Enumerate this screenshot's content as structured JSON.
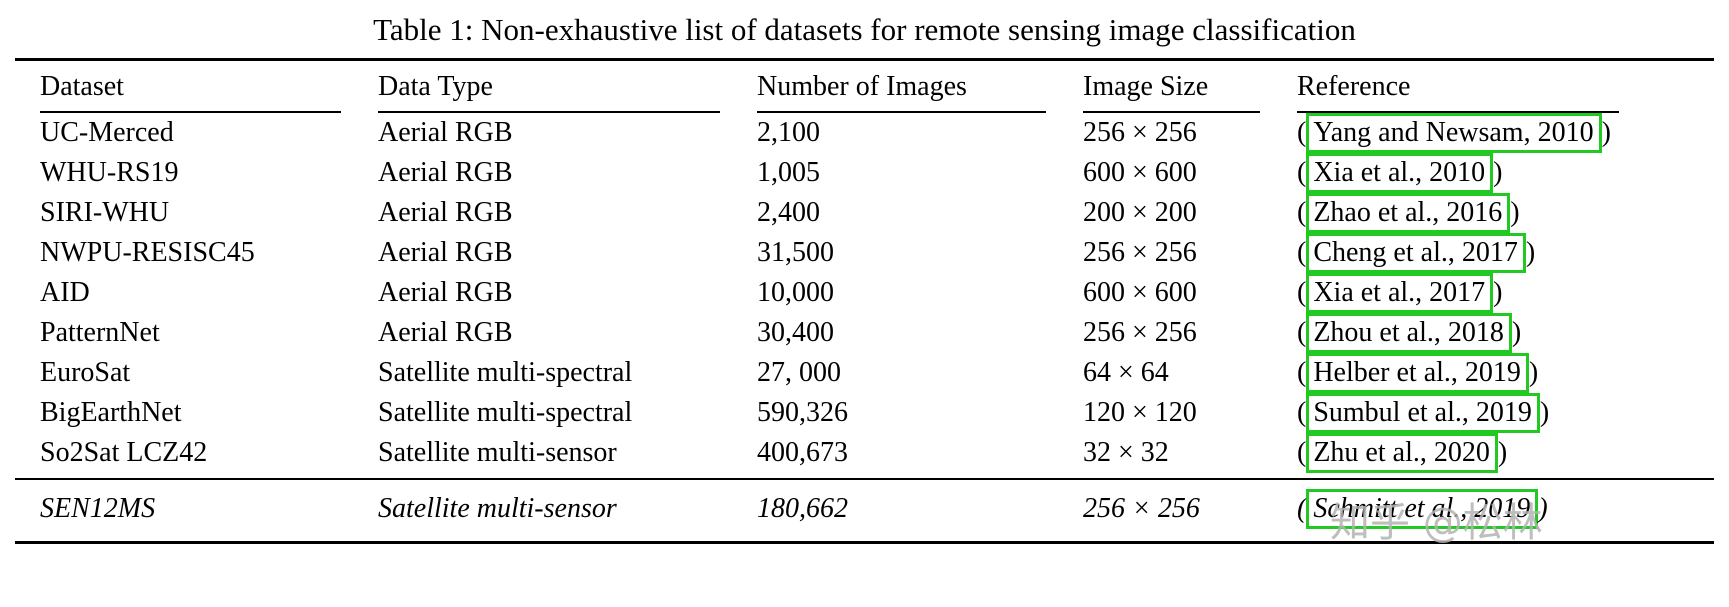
{
  "title": "Table 1: Non-exhaustive list of datasets for remote sensing image classification",
  "columns": {
    "dataset": "Dataset",
    "data_type": "Data Type",
    "num_images": "Number of Images",
    "image_size": "Image Size",
    "reference": "Reference"
  },
  "paren_open": "(",
  "paren_close": ")",
  "link_box_color": "#23C923",
  "watermark": "知乎 @松林",
  "rows": [
    {
      "dataset": "UC-Merced",
      "data_type": "Aerial RGB",
      "num_images": "2,100",
      "image_size": "256 × 256",
      "citation": "Yang and Newsam, 2010"
    },
    {
      "dataset": "WHU-RS19",
      "data_type": "Aerial RGB",
      "num_images": "1,005",
      "image_size": "600 × 600",
      "citation": "Xia et al., 2010"
    },
    {
      "dataset": "SIRI-WHU",
      "data_type": "Aerial RGB",
      "num_images": "2,400",
      "image_size": "200 × 200",
      "citation": "Zhao et al., 2016"
    },
    {
      "dataset": "NWPU-RESISC45",
      "data_type": "Aerial RGB",
      "num_images": "31,500",
      "image_size": "256 × 256",
      "citation": "Cheng et al., 2017"
    },
    {
      "dataset": "AID",
      "data_type": "Aerial RGB",
      "num_images": "10,000",
      "image_size": "600 × 600",
      "citation": "Xia et al., 2017"
    },
    {
      "dataset": "PatternNet",
      "data_type": "Aerial RGB",
      "num_images": "30,400",
      "image_size": "256 × 256",
      "citation": "Zhou et al., 2018"
    },
    {
      "dataset": "EuroSat",
      "data_type": "Satellite multi-spectral",
      "num_images": "27, 000",
      "image_size": "64 × 64",
      "citation": "Helber et al., 2019"
    },
    {
      "dataset": "BigEarthNet",
      "data_type": "Satellite multi-spectral",
      "num_images": "590,326",
      "image_size": "120 × 120",
      "citation": "Sumbul et al., 2019"
    },
    {
      "dataset": "So2Sat LCZ42",
      "data_type": "Satellite multi-sensor",
      "num_images": "400,673",
      "image_size": "32 × 32",
      "citation": "Zhu et al., 2020"
    },
    {
      "dataset": "SEN12MS",
      "data_type": "Satellite multi-sensor",
      "num_images": "180,662",
      "image_size": "256 × 256",
      "citation": "Schmitt et al., 2019"
    }
  ]
}
